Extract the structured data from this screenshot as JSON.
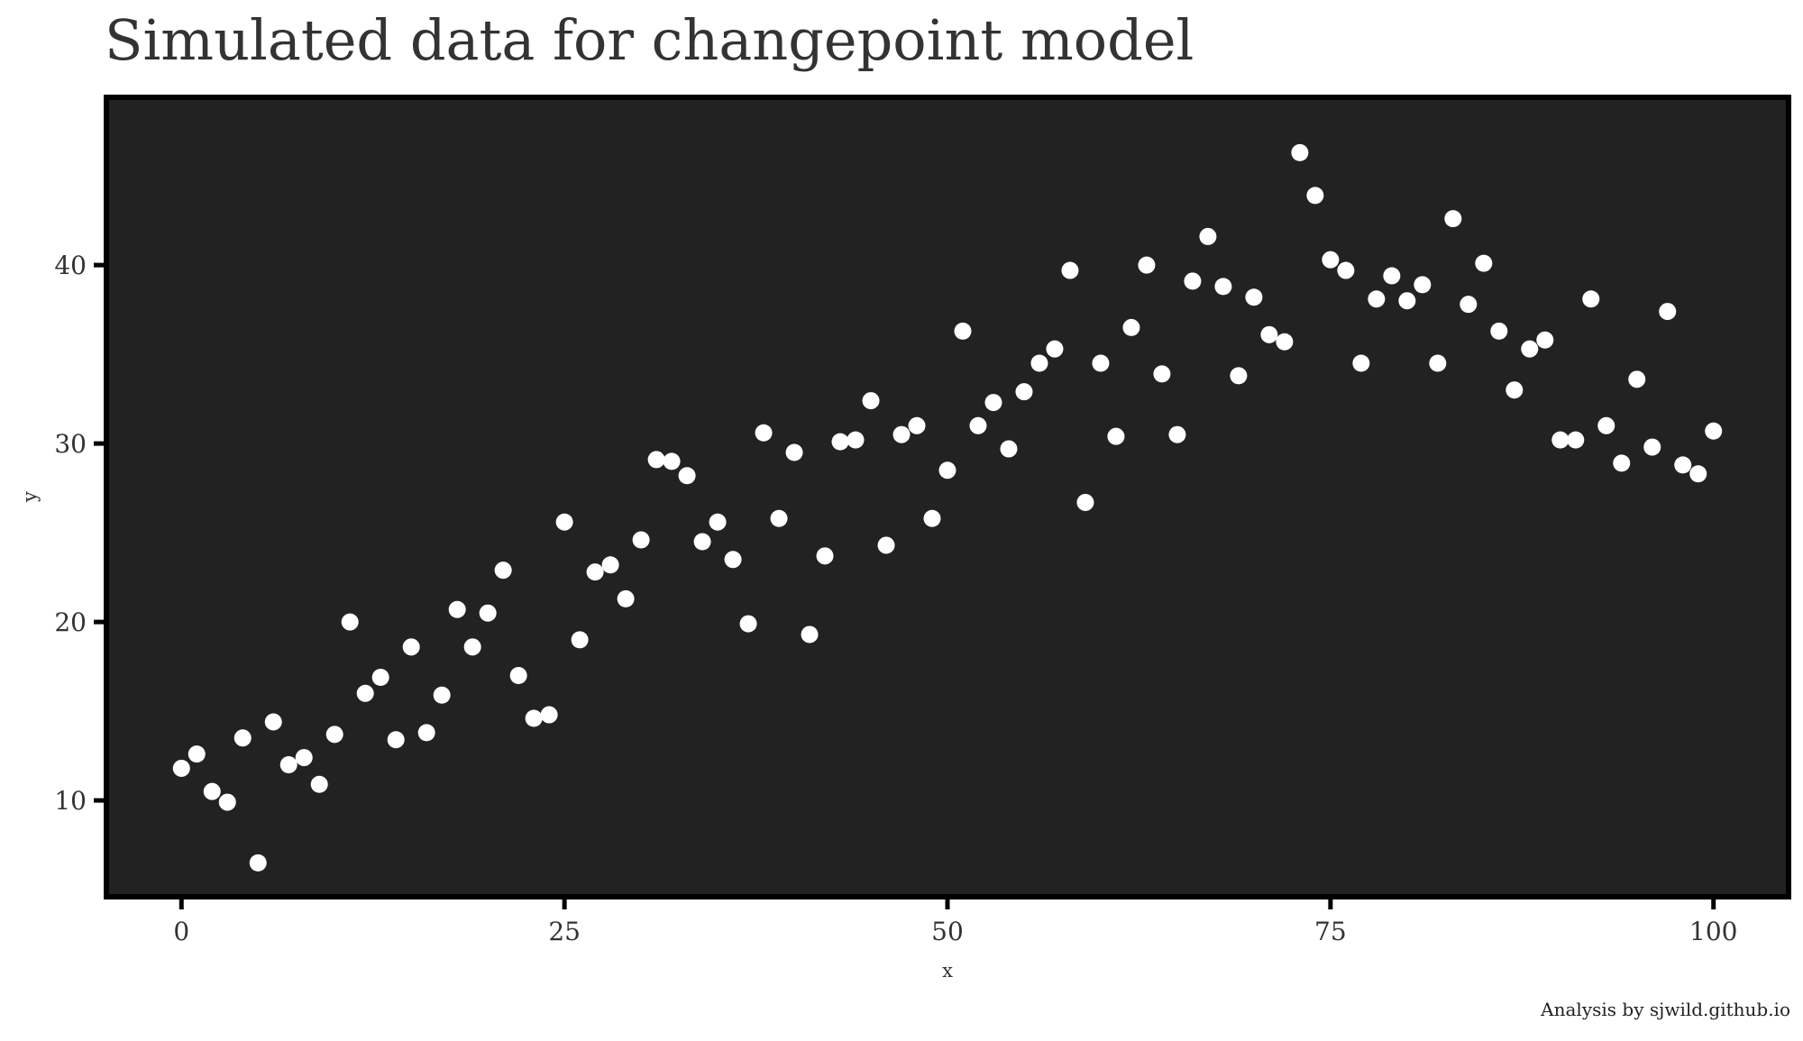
{
  "chart_data": {
    "type": "scatter",
    "title": "Simulated data for changepoint model",
    "xlabel": "x",
    "ylabel": "y",
    "caption": "Analysis by sjwild.github.io",
    "xlim": [
      -4.9,
      104.9
    ],
    "ylim": [
      4.6,
      49.4
    ],
    "x_ticks": [
      0,
      25,
      50,
      75,
      100
    ],
    "x_tick_labels": [
      "0",
      "25",
      "50",
      "75",
      "100"
    ],
    "y_ticks": [
      10,
      20,
      30,
      40
    ],
    "y_tick_labels": [
      "10",
      "20",
      "30",
      "40"
    ],
    "grid": false,
    "legend": "none",
    "point_color": "#ffffff",
    "panel_color": "#222222",
    "border_color": "#000000",
    "points": [
      [
        0,
        11.8
      ],
      [
        1,
        12.6
      ],
      [
        2,
        10.5
      ],
      [
        3,
        9.9
      ],
      [
        4,
        13.5
      ],
      [
        5,
        6.5
      ],
      [
        6,
        14.4
      ],
      [
        7,
        12.0
      ],
      [
        8,
        12.4
      ],
      [
        9,
        10.9
      ],
      [
        10,
        13.7
      ],
      [
        11,
        20.0
      ],
      [
        12,
        16.0
      ],
      [
        13,
        16.9
      ],
      [
        14,
        13.4
      ],
      [
        15,
        18.6
      ],
      [
        16,
        13.8
      ],
      [
        17,
        15.9
      ],
      [
        18,
        20.7
      ],
      [
        19,
        18.6
      ],
      [
        20,
        20.5
      ],
      [
        21,
        22.9
      ],
      [
        22,
        17.0
      ],
      [
        23,
        14.6
      ],
      [
        24,
        14.8
      ],
      [
        25,
        25.6
      ],
      [
        26,
        19.0
      ],
      [
        27,
        22.8
      ],
      [
        28,
        23.2
      ],
      [
        29,
        21.3
      ],
      [
        30,
        24.6
      ],
      [
        31,
        29.1
      ],
      [
        32,
        29.0
      ],
      [
        33,
        28.2
      ],
      [
        34,
        24.5
      ],
      [
        35,
        25.6
      ],
      [
        36,
        23.5
      ],
      [
        37,
        19.9
      ],
      [
        38,
        30.6
      ],
      [
        39,
        25.8
      ],
      [
        40,
        29.5
      ],
      [
        41,
        19.3
      ],
      [
        42,
        23.7
      ],
      [
        43,
        30.1
      ],
      [
        44,
        30.2
      ],
      [
        45,
        32.4
      ],
      [
        46,
        24.3
      ],
      [
        47,
        30.5
      ],
      [
        48,
        31.0
      ],
      [
        49,
        25.8
      ],
      [
        50,
        28.5
      ],
      [
        51,
        36.3
      ],
      [
        52,
        31.0
      ],
      [
        53,
        32.3
      ],
      [
        54,
        29.7
      ],
      [
        55,
        32.9
      ],
      [
        56,
        34.5
      ],
      [
        57,
        35.3
      ],
      [
        58,
        39.7
      ],
      [
        59,
        26.7
      ],
      [
        60,
        34.5
      ],
      [
        61,
        30.4
      ],
      [
        62,
        36.5
      ],
      [
        63,
        40.0
      ],
      [
        64,
        33.9
      ],
      [
        65,
        30.5
      ],
      [
        66,
        39.1
      ],
      [
        67,
        41.6
      ],
      [
        68,
        38.8
      ],
      [
        69,
        33.8
      ],
      [
        70,
        38.2
      ],
      [
        71,
        36.1
      ],
      [
        72,
        35.7
      ],
      [
        73,
        46.3
      ],
      [
        74,
        43.9
      ],
      [
        75,
        40.3
      ],
      [
        76,
        39.7
      ],
      [
        77,
        34.5
      ],
      [
        78,
        38.1
      ],
      [
        79,
        39.4
      ],
      [
        80,
        38.0
      ],
      [
        81,
        38.9
      ],
      [
        82,
        34.5
      ],
      [
        83,
        42.6
      ],
      [
        84,
        37.8
      ],
      [
        85,
        40.1
      ],
      [
        86,
        36.3
      ],
      [
        87,
        33.0
      ],
      [
        88,
        35.3
      ],
      [
        89,
        35.8
      ],
      [
        90,
        30.2
      ],
      [
        91,
        30.2
      ],
      [
        92,
        38.1
      ],
      [
        93,
        31.0
      ],
      [
        94,
        28.9
      ],
      [
        95,
        33.6
      ],
      [
        96,
        29.8
      ],
      [
        97,
        37.4
      ],
      [
        98,
        28.8
      ],
      [
        99,
        28.3
      ],
      [
        100,
        30.7
      ]
    ]
  }
}
